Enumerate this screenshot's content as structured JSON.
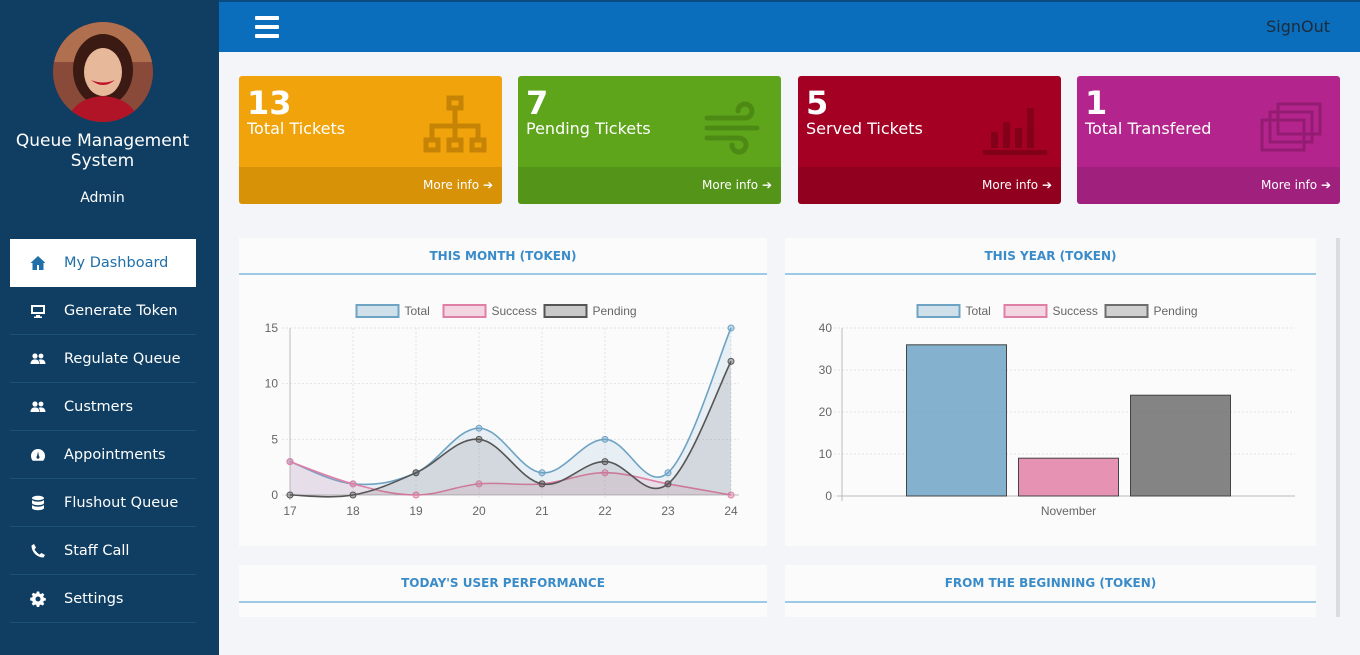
{
  "sidebar": {
    "app_title": "Queue Management System",
    "user_role": "Admin",
    "items": [
      {
        "label": "My Dashboard",
        "icon": "home-icon",
        "active": true
      },
      {
        "label": "Generate Token",
        "icon": "monitor-icon"
      },
      {
        "label": "Regulate Queue",
        "icon": "users-icon"
      },
      {
        "label": "Custmers",
        "icon": "users-icon"
      },
      {
        "label": "Appointments",
        "icon": "gauge-icon"
      },
      {
        "label": "Flushout Queue",
        "icon": "database-icon"
      },
      {
        "label": "Staff Call",
        "icon": "phone-icon"
      },
      {
        "label": "Settings",
        "icon": "gear-icon"
      }
    ]
  },
  "topbar": {
    "signout_label": "SignOut"
  },
  "stats": [
    {
      "value": "13",
      "label": "Total Tickets",
      "more": "More info",
      "color": "#f0a30a",
      "icon": "sitemap-icon"
    },
    {
      "value": "7",
      "label": "Pending Tickets",
      "more": "More info",
      "color": "#5ea51b",
      "icon": "wind-icon"
    },
    {
      "value": "5",
      "label": "Served Tickets",
      "more": "More info",
      "color": "#a30023",
      "icon": "bar-chart-icon"
    },
    {
      "value": "1",
      "label": "Total Transfered",
      "more": "More info",
      "color": "#b3258c",
      "icon": "windows-icon"
    }
  ],
  "panels": {
    "month_title": "THIS MONTH (TOKEN)",
    "year_title": "THIS YEAR (TOKEN)",
    "today_title": "TODAY'S USER PERFORMANCE",
    "beginning_title": "FROM THE BEGINNING (TOKEN)"
  },
  "chart_data": [
    {
      "type": "line",
      "title": "THIS MONTH (TOKEN)",
      "x": [
        17,
        18,
        19,
        20,
        21,
        22,
        23,
        24
      ],
      "series": [
        {
          "name": "Total",
          "values": [
            3,
            1,
            2,
            6,
            2,
            5,
            2,
            15
          ],
          "color": "#6ea3c4"
        },
        {
          "name": "Success",
          "values": [
            3,
            1,
            0,
            1,
            1,
            2,
            1,
            0
          ],
          "color": "#e07fa6"
        },
        {
          "name": "Pending",
          "values": [
            0,
            0,
            2,
            5,
            1,
            3,
            1,
            12
          ],
          "color": "#555555"
        }
      ],
      "ylim": [
        0,
        15
      ],
      "yticks": [
        0,
        5,
        10,
        15
      ],
      "legend": "top"
    },
    {
      "type": "bar",
      "title": "THIS YEAR (TOKEN)",
      "categories": [
        "November"
      ],
      "series": [
        {
          "name": "Total",
          "values": [
            36
          ],
          "color": "#6ea3c4"
        },
        {
          "name": "Success",
          "values": [
            9
          ],
          "color": "#e07fa6"
        },
        {
          "name": "Pending",
          "values": [
            24
          ],
          "color": "#6e6e6e"
        }
      ],
      "ylim": [
        0,
        40
      ],
      "yticks": [
        0,
        10,
        20,
        30,
        40
      ],
      "legend": "top"
    }
  ]
}
